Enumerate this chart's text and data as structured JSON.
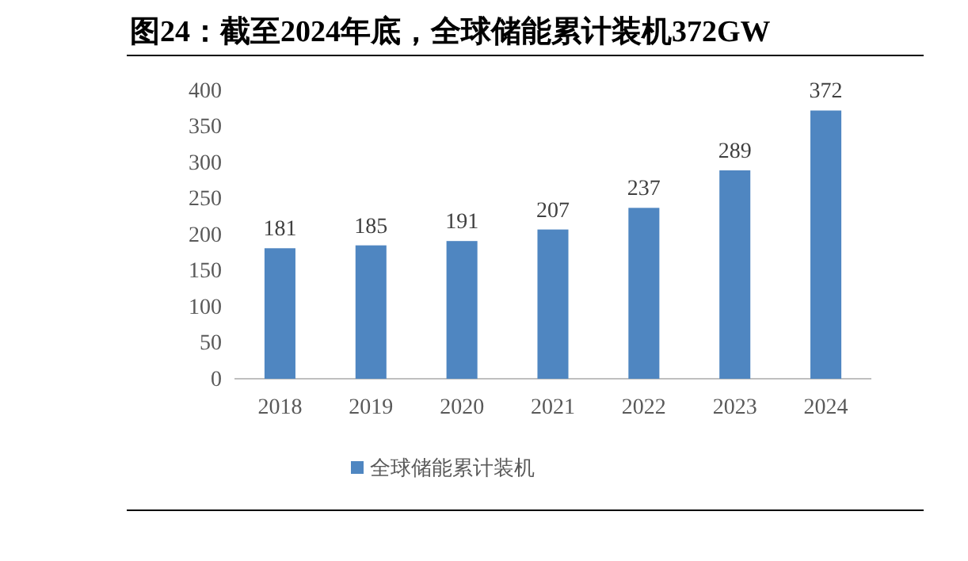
{
  "chart_data": {
    "type": "bar",
    "title": "图24：截至2024年底，全球储能累计装机372GW",
    "categories": [
      "2018",
      "2019",
      "2020",
      "2021",
      "2022",
      "2023",
      "2024"
    ],
    "series": [
      {
        "name": "全球储能累计装机",
        "color": "#4f86c1",
        "values": [
          181,
          185,
          191,
          207,
          237,
          289,
          372
        ]
      }
    ],
    "ylim": [
      0,
      400
    ],
    "yticks": [
      0,
      50,
      100,
      150,
      200,
      250,
      300,
      350,
      400
    ],
    "data_labels": true,
    "legend": "bottom",
    "grid": false
  }
}
